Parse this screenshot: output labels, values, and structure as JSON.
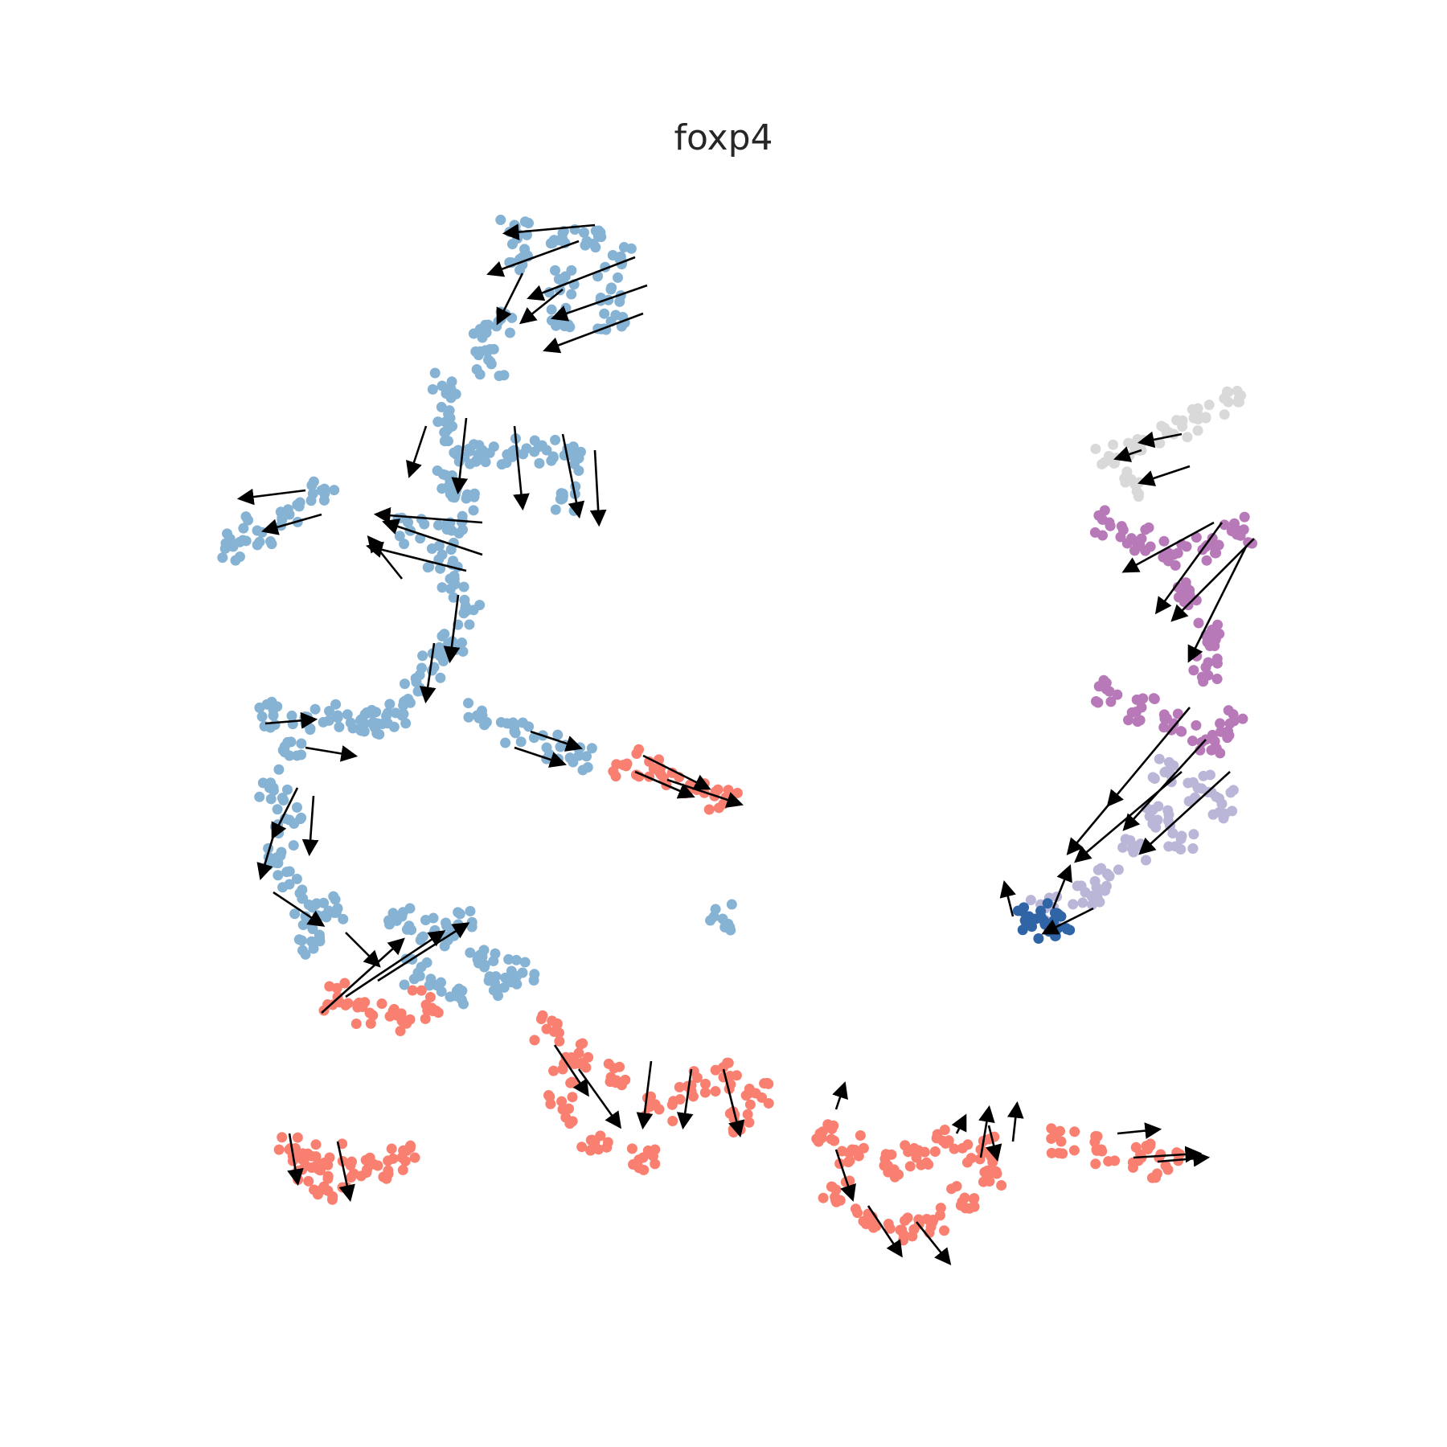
{
  "chart_data": {
    "type": "scatter",
    "title": "foxp4",
    "xlabel": "",
    "ylabel": "",
    "axes_visible": false,
    "grid": false,
    "legend": "none",
    "point_colors": {
      "light_blue": "#86b2d4",
      "salmon": "#f98070",
      "purple": "#b779b8",
      "lavender": "#b9b6d8",
      "light_gray": "#d9d9d9",
      "dark_blue": "#2f64a6"
    },
    "arrow_color": "#000000",
    "clusters": [
      {
        "color": "light_blue",
        "points": [
          [
            640,
            280
          ],
          [
            700,
            290
          ],
          [
            650,
            320
          ],
          [
            700,
            350
          ],
          [
            760,
            360
          ],
          [
            620,
            400
          ],
          [
            700,
            390
          ],
          [
            770,
            320
          ],
          [
            760,
            400
          ],
          [
            600,
            420
          ],
          [
            610,
            450
          ],
          [
            730,
            300
          ]
        ]
      },
      {
        "color": "light_blue",
        "points": [
          [
            550,
            480
          ],
          [
            560,
            520
          ],
          [
            570,
            560
          ],
          [
            560,
            600
          ],
          [
            600,
            560
          ],
          [
            640,
            560
          ],
          [
            680,
            560
          ],
          [
            720,
            570
          ],
          [
            700,
            620
          ],
          [
            560,
            650
          ],
          [
            580,
            620
          ]
        ]
      },
      {
        "color": "light_blue",
        "points": [
          [
            290,
            680
          ],
          [
            320,
            660
          ],
          [
            360,
            640
          ],
          [
            400,
            610
          ]
        ]
      },
      {
        "color": "light_blue",
        "points": [
          [
            510,
            660
          ],
          [
            550,
            690
          ],
          [
            560,
            720
          ],
          [
            580,
            760
          ],
          [
            560,
            800
          ],
          [
            540,
            830
          ],
          [
            520,
            860
          ],
          [
            500,
            890
          ],
          [
            470,
            900
          ]
        ]
      },
      {
        "color": "light_blue",
        "points": [
          [
            340,
            890
          ],
          [
            380,
            900
          ],
          [
            420,
            890
          ],
          [
            450,
            900
          ],
          [
            360,
            940
          ],
          [
            340,
            980
          ],
          [
            360,
            1020
          ],
          [
            350,
            1060
          ],
          [
            360,
            1100
          ],
          [
            380,
            1140
          ],
          [
            420,
            1130
          ],
          [
            390,
            1180
          ]
        ]
      },
      {
        "color": "light_blue",
        "points": [
          [
            500,
            1140
          ],
          [
            540,
            1160
          ],
          [
            570,
            1150
          ],
          [
            600,
            1190
          ],
          [
            620,
            1230
          ],
          [
            650,
            1210
          ],
          [
            560,
            1240
          ],
          [
            520,
            1210
          ]
        ]
      },
      {
        "color": "light_blue",
        "points": [
          [
            600,
            890
          ],
          [
            640,
            910
          ],
          [
            680,
            930
          ],
          [
            720,
            940
          ]
        ]
      },
      {
        "color": "light_blue",
        "points": [
          [
            899,
            1143
          ]
        ]
      },
      {
        "color": "salmon",
        "points": [
          [
            780,
            950
          ],
          [
            820,
            960
          ],
          [
            860,
            980
          ],
          [
            900,
            1000
          ]
        ]
      },
      {
        "color": "salmon",
        "points": [
          [
            420,
            1240
          ],
          [
            460,
            1260
          ],
          [
            500,
            1270
          ],
          [
            530,
            1250
          ]
        ]
      },
      {
        "color": "salmon",
        "points": [
          [
            360,
            1430
          ],
          [
            380,
            1450
          ],
          [
            410,
            1440
          ],
          [
            440,
            1460
          ],
          [
            470,
            1450
          ],
          [
            500,
            1440
          ],
          [
            400,
            1480
          ]
        ]
      },
      {
        "color": "salmon",
        "points": [
          [
            680,
            1280
          ],
          [
            720,
            1310
          ],
          [
            760,
            1340
          ],
          [
            700,
            1380
          ],
          [
            740,
            1420
          ],
          [
            800,
            1440
          ],
          [
            820,
            1380
          ],
          [
            860,
            1350
          ],
          [
            900,
            1340
          ],
          [
            940,
            1360
          ],
          [
            920,
            1400
          ],
          [
            700,
            1330
          ]
        ]
      },
      {
        "color": "salmon",
        "points": [
          [
            1020,
            1410
          ],
          [
            1060,
            1430
          ],
          [
            1100,
            1450
          ],
          [
            1140,
            1440
          ],
          [
            1180,
            1420
          ],
          [
            1220,
            1430
          ],
          [
            1040,
            1480
          ],
          [
            1080,
            1510
          ],
          [
            1120,
            1530
          ],
          [
            1160,
            1520
          ],
          [
            1200,
            1490
          ],
          [
            1240,
            1460
          ]
        ]
      },
      {
        "color": "salmon",
        "points": [
          [
            1320,
            1420
          ],
          [
            1370,
            1430
          ],
          [
            1420,
            1440
          ],
          [
            1450,
            1450
          ]
        ]
      },
      {
        "color": "light_gray",
        "points": [
          [
            1380,
            570
          ],
          [
            1420,
            560
          ],
          [
            1460,
            540
          ],
          [
            1500,
            520
          ],
          [
            1540,
            500
          ],
          [
            1400,
            600
          ]
        ]
      },
      {
        "color": "purple",
        "points": [
          [
            1380,
            650
          ],
          [
            1420,
            670
          ],
          [
            1460,
            690
          ],
          [
            1500,
            680
          ],
          [
            1540,
            660
          ],
          [
            1480,
            740
          ],
          [
            1500,
            790
          ],
          [
            1500,
            830
          ],
          [
            1380,
            860
          ],
          [
            1420,
            880
          ],
          [
            1460,
            900
          ],
          [
            1500,
            920
          ],
          [
            1530,
            900
          ]
        ]
      },
      {
        "color": "lavender",
        "points": [
          [
            1450,
            960
          ],
          [
            1490,
            980
          ],
          [
            1520,
            1000
          ],
          [
            1440,
            1020
          ],
          [
            1470,
            1040
          ],
          [
            1410,
            1060
          ],
          [
            1380,
            1090
          ],
          [
            1350,
            1110
          ],
          [
            1300,
            1130
          ]
        ]
      },
      {
        "color": "dark_blue",
        "points": [
          [
            1280,
            1140
          ],
          [
            1300,
            1150
          ],
          [
            1320,
            1140
          ]
        ]
      }
    ],
    "velocity_arrows": [
      [
        [
          740,
          280
        ],
        [
          630,
          290
        ]
      ],
      [
        [
          805,
          355
        ],
        [
          690,
          395
        ]
      ],
      [
        [
          800,
          390
        ],
        [
          680,
          435
        ]
      ],
      [
        [
          790,
          320
        ],
        [
          660,
          370
        ]
      ],
      [
        [
          720,
          300
        ],
        [
          610,
          340
        ]
      ],
      [
        [
          650,
          340
        ],
        [
          620,
          400
        ]
      ],
      [
        [
          700,
          360
        ],
        [
          650,
          400
        ]
      ],
      [
        [
          530,
          530
        ],
        [
          510,
          590
        ]
      ],
      [
        [
          580,
          520
        ],
        [
          570,
          610
        ]
      ],
      [
        [
          640,
          530
        ],
        [
          650,
          630
        ]
      ],
      [
        [
          700,
          540
        ],
        [
          720,
          640
        ]
      ],
      [
        [
          740,
          560
        ],
        [
          745,
          650
        ]
      ],
      [
        [
          600,
          650
        ],
        [
          470,
          640
        ]
      ],
      [
        [
          600,
          690
        ],
        [
          480,
          650
        ]
      ],
      [
        [
          580,
          710
        ],
        [
          460,
          680
        ]
      ],
      [
        [
          500,
          720
        ],
        [
          460,
          670
        ]
      ],
      [
        [
          380,
          610
        ],
        [
          300,
          620
        ]
      ],
      [
        [
          400,
          640
        ],
        [
          330,
          660
        ]
      ],
      [
        [
          570,
          740
        ],
        [
          560,
          820
        ]
      ],
      [
        [
          540,
          800
        ],
        [
          530,
          870
        ]
      ],
      [
        [
          330,
          900
        ],
        [
          390,
          895
        ]
      ],
      [
        [
          380,
          930
        ],
        [
          440,
          940
        ]
      ],
      [
        [
          370,
          980
        ],
        [
          340,
          1040
        ]
      ],
      [
        [
          390,
          990
        ],
        [
          385,
          1060
        ]
      ],
      [
        [
          340,
          1040
        ],
        [
          325,
          1090
        ]
      ],
      [
        [
          340,
          1110
        ],
        [
          400,
          1150
        ]
      ],
      [
        [
          430,
          1160
        ],
        [
          470,
          1200
        ]
      ],
      [
        [
          400,
          1260
        ],
        [
          500,
          1170
        ]
      ],
      [
        [
          430,
          1240
        ],
        [
          550,
          1160
        ]
      ],
      [
        [
          470,
          1220
        ],
        [
          580,
          1150
        ]
      ],
      [
        [
          660,
          910
        ],
        [
          720,
          930
        ]
      ],
      [
        [
          640,
          930
        ],
        [
          700,
          950
        ]
      ],
      [
        [
          790,
          960
        ],
        [
          860,
          990
        ]
      ],
      [
        [
          800,
          940
        ],
        [
          880,
          980
        ]
      ],
      [
        [
          830,
          970
        ],
        [
          920,
          1000
        ]
      ],
      [
        [
          360,
          1410
        ],
        [
          370,
          1470
        ]
      ],
      [
        [
          420,
          1420
        ],
        [
          435,
          1490
        ]
      ],
      [
        [
          690,
          1300
        ],
        [
          730,
          1360
        ]
      ],
      [
        [
          720,
          1330
        ],
        [
          770,
          1400
        ]
      ],
      [
        [
          810,
          1320
        ],
        [
          800,
          1400
        ]
      ],
      [
        [
          860,
          1330
        ],
        [
          850,
          1400
        ]
      ],
      [
        [
          900,
          1330
        ],
        [
          920,
          1410
        ]
      ],
      [
        [
          1040,
          1430
        ],
        [
          1060,
          1490
        ]
      ],
      [
        [
          1080,
          1500
        ],
        [
          1120,
          1560
        ]
      ],
      [
        [
          1140,
          1520
        ],
        [
          1180,
          1570
        ]
      ],
      [
        [
          1190,
          1410
        ],
        [
          1200,
          1390
        ]
      ],
      [
        [
          1230,
          1400
        ],
        [
          1240,
          1440
        ]
      ],
      [
        [
          1040,
          1380
        ],
        [
          1050,
          1350
        ]
      ],
      [
        [
          1220,
          1440
        ],
        [
          1230,
          1380
        ]
      ],
      [
        [
          1260,
          1420
        ],
        [
          1265,
          1375
        ]
      ],
      [
        [
          1390,
          1410
        ],
        [
          1440,
          1405
        ]
      ],
      [
        [
          1410,
          1440
        ],
        [
          1490,
          1435
        ]
      ],
      [
        [
          1440,
          1445
        ],
        [
          1500,
          1440
        ]
      ],
      [
        [
          1420,
          560
        ],
        [
          1390,
          570
        ]
      ],
      [
        [
          1470,
          540
        ],
        [
          1420,
          550
        ]
      ],
      [
        [
          1480,
          580
        ],
        [
          1420,
          600
        ]
      ],
      [
        [
          1510,
          650
        ],
        [
          1400,
          710
        ]
      ],
      [
        [
          1560,
          670
        ],
        [
          1460,
          770
        ]
      ],
      [
        [
          1550,
          680
        ],
        [
          1480,
          820
        ]
      ],
      [
        [
          1520,
          650
        ],
        [
          1440,
          760
        ]
      ],
      [
        [
          1480,
          880
        ],
        [
          1380,
          1000
        ]
      ],
      [
        [
          1500,
          920
        ],
        [
          1400,
          1030
        ]
      ],
      [
        [
          1530,
          960
        ],
        [
          1420,
          1060
        ]
      ],
      [
        [
          1470,
          960
        ],
        [
          1340,
          1070
        ]
      ],
      [
        [
          1380,
          1000
        ],
        [
          1330,
          1060
        ]
      ],
      [
        [
          1310,
          1130
        ],
        [
          1330,
          1080
        ]
      ],
      [
        [
          1260,
          1140
        ],
        [
          1250,
          1100
        ]
      ],
      [
        [
          1360,
          1130
        ],
        [
          1300,
          1160
        ]
      ]
    ]
  }
}
